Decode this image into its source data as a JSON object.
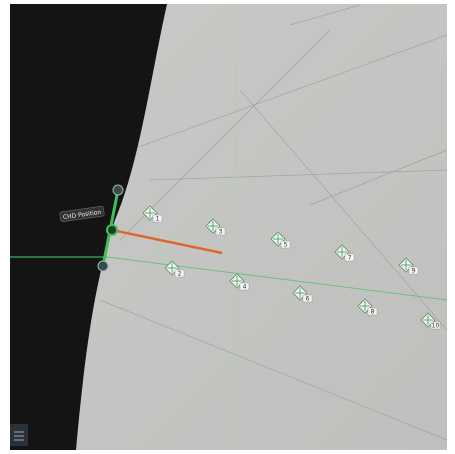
{
  "probe_label": "CHD Position",
  "markers": [
    {
      "label": "1"
    },
    {
      "label": "2"
    },
    {
      "label": "3"
    },
    {
      "label": "4"
    },
    {
      "label": "5"
    },
    {
      "label": "6"
    },
    {
      "label": "7"
    },
    {
      "label": "8"
    },
    {
      "label": "9"
    },
    {
      "label": "10"
    }
  ]
}
